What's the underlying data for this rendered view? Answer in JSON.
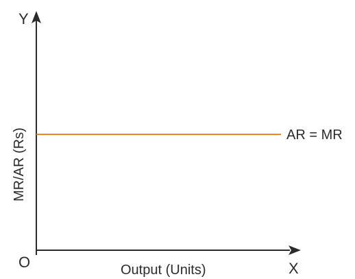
{
  "diagram": {
    "y_axis_letter": "Y",
    "x_axis_letter": "X",
    "origin_label": "O",
    "x_axis_title": "Output (Units)",
    "y_axis_title": "MR/AR (Rs)",
    "curve_label": "AR = MR",
    "curve_color": "#f0851e",
    "axis_color": "#2b2b2b"
  }
}
